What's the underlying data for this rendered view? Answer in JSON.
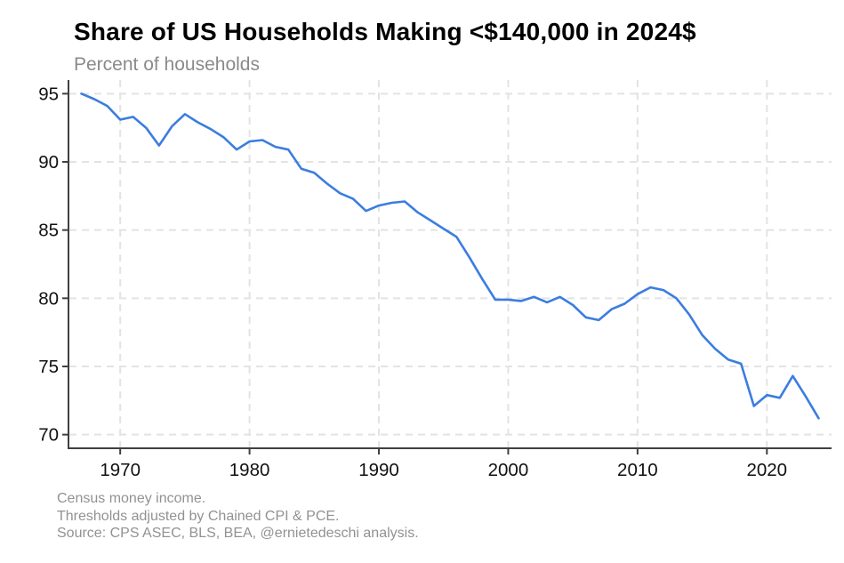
{
  "chart": {
    "title": "Share of US Households Making <$140,000 in 2024$",
    "subtitle": "Percent of households",
    "notes": [
      "Census money income.",
      "Thresholds adjusted by Chained CPI & PCE.",
      "Source: CPS ASEC, BLS, BEA, @ernietedeschi analysis."
    ],
    "colors": {
      "line": "#3b7de0",
      "axis": "#404040",
      "grid": "#e3e3e3",
      "tick_label": "#111111",
      "title": "#000000",
      "subtitle": "#8a8a8a",
      "notes": "#929292",
      "background": "#ffffff"
    }
  },
  "chart_data": {
    "type": "line",
    "title": "Share of US Households Making <$140,000 in 2024$",
    "subtitle": "Percent of households",
    "xlabel": "",
    "ylabel": "Percent of households",
    "x": [
      1967,
      1968,
      1969,
      1970,
      1971,
      1972,
      1973,
      1974,
      1975,
      1976,
      1977,
      1978,
      1979,
      1980,
      1981,
      1982,
      1983,
      1984,
      1985,
      1986,
      1987,
      1988,
      1989,
      1990,
      1991,
      1992,
      1993,
      1994,
      1995,
      1996,
      1997,
      1998,
      1999,
      2000,
      2001,
      2002,
      2003,
      2004,
      2005,
      2006,
      2007,
      2008,
      2009,
      2010,
      2011,
      2012,
      2013,
      2014,
      2015,
      2016,
      2017,
      2018,
      2019,
      2020,
      2021,
      2022,
      2023,
      2024
    ],
    "values": [
      95.0,
      94.6,
      94.1,
      93.1,
      93.3,
      92.5,
      91.2,
      92.6,
      93.5,
      92.9,
      92.4,
      91.8,
      90.9,
      91.5,
      91.6,
      91.1,
      90.9,
      89.5,
      89.2,
      88.4,
      87.7,
      87.3,
      86.4,
      86.8,
      87.0,
      87.1,
      86.3,
      85.7,
      85.1,
      84.5,
      83.0,
      81.4,
      79.9,
      79.9,
      79.8,
      80.1,
      79.7,
      80.1,
      79.5,
      78.6,
      78.4,
      79.2,
      79.6,
      80.3,
      80.8,
      80.6,
      80.0,
      78.8,
      77.3,
      76.3,
      75.5,
      75.2,
      72.1,
      72.9,
      72.7,
      74.3,
      72.8,
      71.2
    ],
    "x_ticks": [
      1970,
      1980,
      1990,
      2000,
      2010,
      2020
    ],
    "y_ticks": [
      70,
      75,
      80,
      85,
      90,
      95
    ],
    "xlim": [
      1966,
      2025
    ],
    "ylim": [
      69,
      96
    ],
    "grid": "dashed-both-axes",
    "legend": "none"
  }
}
